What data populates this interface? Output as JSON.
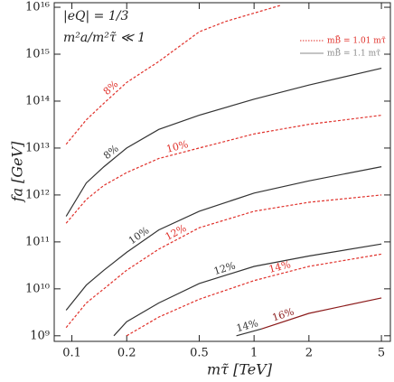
{
  "chart_data": {
    "type": "line",
    "x_label": "mτ̃ [TeV]",
    "y_label": "fa [GeV]",
    "annotations": [
      "|eQ| = 1/3",
      "m²a/m²τ̃ ≪ 1"
    ],
    "log_x": true,
    "log_y": true,
    "xlim": [
      0.08,
      5.6
    ],
    "ylim": [
      760000000,
      12500000000000000
    ],
    "xticks": [
      0.1,
      0.2,
      0.5,
      1,
      2,
      5
    ],
    "yticks": [
      {
        "value": 1000000000,
        "label": "10⁹"
      },
      {
        "value": 10000000000,
        "label": "10¹⁰"
      },
      {
        "value": 100000000000,
        "label": "10¹¹"
      },
      {
        "value": 1000000000000,
        "label": "10¹²"
      },
      {
        "value": 10000000000000,
        "label": "10¹³"
      },
      {
        "value": 100000000000000,
        "label": "10¹⁴"
      },
      {
        "value": 1000000000000000,
        "label": "10¹⁵"
      },
      {
        "value": 10000000000000000,
        "label": "10¹⁶"
      }
    ],
    "legend_position": "upper right",
    "legend": [
      {
        "label": "mB̃ = 1.01 mτ̃",
        "color": "#e0302a",
        "dash": true
      },
      {
        "label": "mB̃ = 1.1 mτ̃",
        "color": "#888888",
        "dash": false
      }
    ],
    "series": [
      {
        "name": "8%",
        "color": "#e0302a",
        "dash": true,
        "x": [
          0.093,
          0.12,
          0.15,
          0.2,
          0.3,
          0.5,
          0.7,
          1,
          1.4
        ],
        "values": [
          12000000000000,
          40000000000000,
          90000000000000,
          250000000000000,
          700000000000000,
          3000000000000000,
          5000000000000000,
          7500000000000000,
          11000000000000000
        ]
      },
      {
        "name": "8%",
        "color": "#333333",
        "dash": false,
        "x": [
          0.093,
          0.12,
          0.15,
          0.2,
          0.3,
          0.5,
          1,
          2,
          5
        ],
        "values": [
          350000000000,
          1800000000000,
          4000000000000,
          10000000000000,
          25000000000000,
          50000000000000,
          110000000000000,
          220000000000000,
          500000000000000
        ]
      },
      {
        "name": "10%",
        "color": "#e0302a",
        "dash": true,
        "x": [
          0.093,
          0.12,
          0.15,
          0.2,
          0.3,
          0.5,
          1,
          2,
          5
        ],
        "values": [
          250000000000,
          800000000000,
          1600000000000,
          3000000000000,
          6000000000000,
          10000000000000,
          20000000000000,
          32000000000000,
          50000000000000
        ]
      },
      {
        "name": "10%",
        "color": "#333333",
        "dash": false,
        "x": [
          0.093,
          0.12,
          0.15,
          0.2,
          0.3,
          0.5,
          1,
          2,
          5
        ],
        "values": [
          3500000000,
          12000000000,
          25000000000,
          60000000000,
          180000000000,
          450000000000,
          1100000000000,
          2000000000000,
          4000000000000
        ]
      },
      {
        "name": "12%",
        "color": "#e0302a",
        "dash": true,
        "x": [
          0.093,
          0.12,
          0.15,
          0.2,
          0.3,
          0.5,
          1,
          2,
          5
        ],
        "values": [
          1500000000,
          5000000000,
          10000000000,
          25000000000,
          70000000000,
          200000000000,
          450000000000,
          700000000000,
          1000000000000
        ]
      },
      {
        "name": "12%",
        "color": "#333333",
        "dash": false,
        "x": [
          0.17,
          0.2,
          0.3,
          0.5,
          1,
          2,
          5
        ],
        "values": [
          1000000000,
          2000000000,
          5000000000,
          13000000000,
          30000000000,
          50000000000,
          90000000000
        ]
      },
      {
        "name": "14%",
        "color": "#e0302a",
        "dash": true,
        "x": [
          0.2,
          0.3,
          0.5,
          1,
          2,
          5
        ],
        "values": [
          1000000000,
          2500000000,
          6000000000,
          15000000000,
          30000000000,
          55000000000
        ]
      },
      {
        "name": "14%",
        "color": "#333333",
        "dash": false,
        "x": [
          0.8,
          1.1
        ],
        "values": [
          1000000000,
          1400000000
        ]
      },
      {
        "name": "16%",
        "color": "#8b1a1a",
        "dash": false,
        "x": [
          1.1,
          2,
          5
        ],
        "values": [
          1400000000,
          3000000000,
          6400000000
        ]
      }
    ]
  }
}
